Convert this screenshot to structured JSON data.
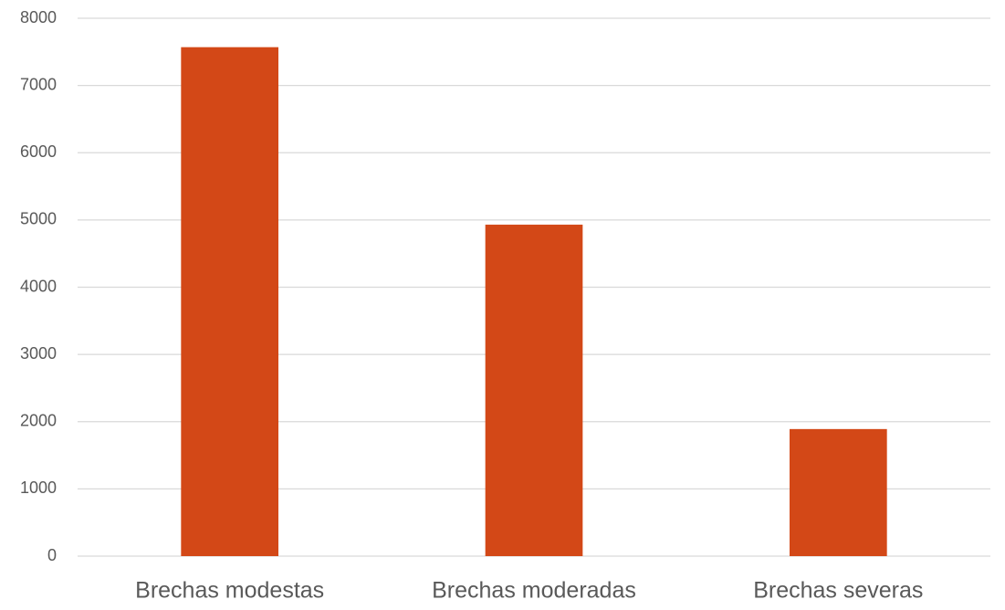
{
  "chart_data": {
    "type": "bar",
    "categories": [
      "Brechas modestas",
      "Brechas moderadas",
      "Brechas severas"
    ],
    "values": [
      7570,
      4930,
      1890
    ],
    "color": "#d34817",
    "ylim": [
      0,
      8000
    ],
    "yticks": [
      0,
      1000,
      2000,
      3000,
      4000,
      5000,
      6000,
      7000,
      8000
    ],
    "grid": true
  }
}
